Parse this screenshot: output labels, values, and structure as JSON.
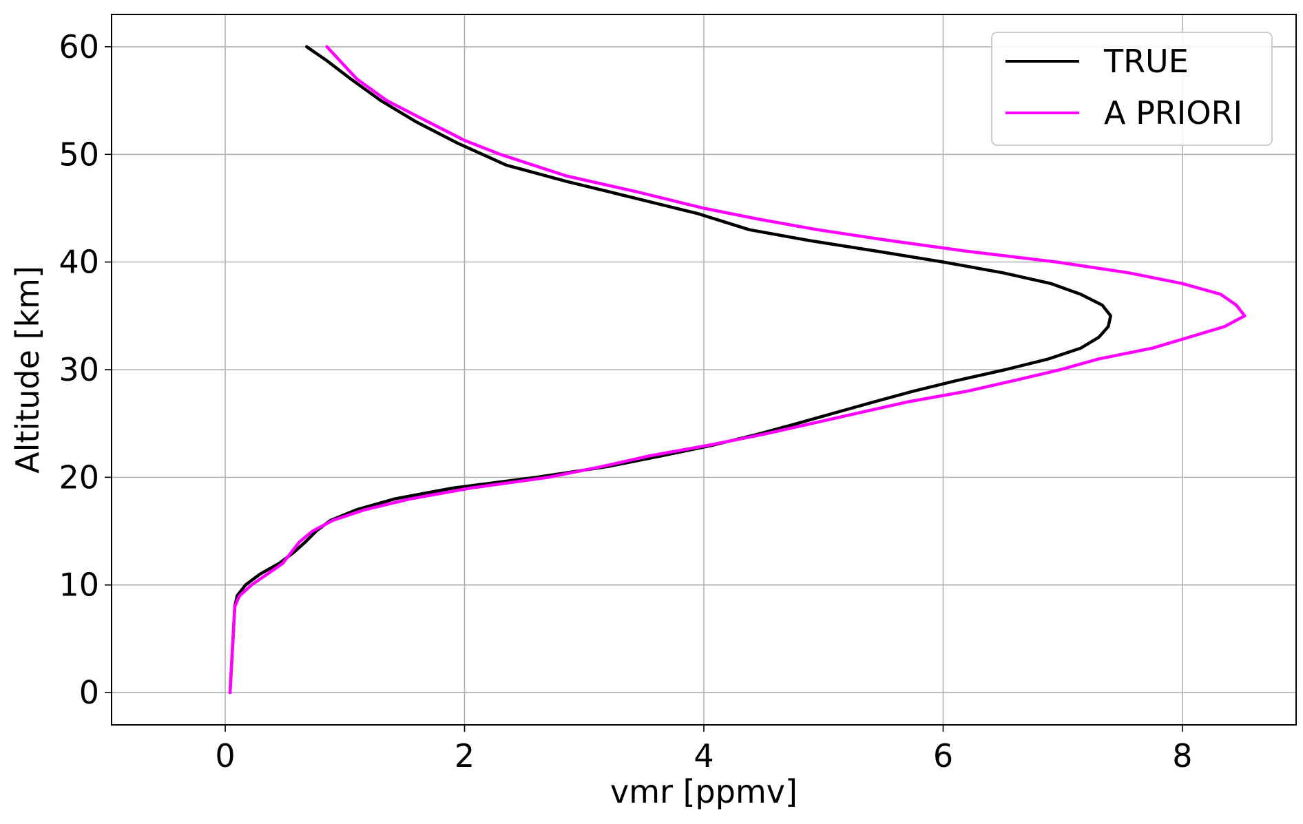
{
  "chart_data": {
    "type": "line",
    "title": "",
    "xlabel": "vmr [ppmv]",
    "ylabel": "Altitude [km]",
    "xlim": [
      -0.95,
      8.95
    ],
    "ylim": [
      -3,
      63
    ],
    "xticks": [
      0,
      2,
      4,
      6,
      8
    ],
    "yticks": [
      0,
      10,
      20,
      30,
      40,
      50,
      60
    ],
    "grid": true,
    "legend_position": "top-right",
    "series": [
      {
        "name": "TRUE",
        "color": "#000000",
        "points": [
          [
            0.04,
            0
          ],
          [
            0.06,
            4
          ],
          [
            0.08,
            8
          ],
          [
            0.1,
            9
          ],
          [
            0.17,
            10
          ],
          [
            0.29,
            11
          ],
          [
            0.45,
            12
          ],
          [
            0.57,
            13
          ],
          [
            0.67,
            14
          ],
          [
            0.76,
            15
          ],
          [
            0.88,
            16
          ],
          [
            1.1,
            17
          ],
          [
            1.42,
            18
          ],
          [
            1.9,
            19
          ],
          [
            2.6,
            20
          ],
          [
            3.2,
            21
          ],
          [
            3.65,
            22
          ],
          [
            4.08,
            23
          ],
          [
            4.45,
            24
          ],
          [
            4.78,
            25
          ],
          [
            5.1,
            26
          ],
          [
            5.42,
            27
          ],
          [
            5.75,
            28
          ],
          [
            6.12,
            29
          ],
          [
            6.52,
            30
          ],
          [
            6.88,
            31
          ],
          [
            7.15,
            32
          ],
          [
            7.3,
            33
          ],
          [
            7.38,
            34
          ],
          [
            7.4,
            35
          ],
          [
            7.33,
            36
          ],
          [
            7.15,
            37
          ],
          [
            6.9,
            38
          ],
          [
            6.5,
            39
          ],
          [
            6.0,
            40
          ],
          [
            5.45,
            41
          ],
          [
            4.88,
            42
          ],
          [
            4.38,
            43
          ],
          [
            3.95,
            44.5
          ],
          [
            3.4,
            46
          ],
          [
            2.85,
            47.5
          ],
          [
            2.35,
            49
          ],
          [
            1.95,
            51
          ],
          [
            1.6,
            53
          ],
          [
            1.3,
            55
          ],
          [
            1.05,
            57
          ],
          [
            0.85,
            58.7
          ],
          [
            0.68,
            60
          ]
        ]
      },
      {
        "name": "A PRIORI",
        "color": "#ff00ff",
        "points": [
          [
            0.04,
            0
          ],
          [
            0.06,
            4
          ],
          [
            0.08,
            8
          ],
          [
            0.12,
            9
          ],
          [
            0.22,
            10
          ],
          [
            0.35,
            11
          ],
          [
            0.48,
            12
          ],
          [
            0.55,
            13
          ],
          [
            0.62,
            14
          ],
          [
            0.73,
            15
          ],
          [
            0.9,
            16
          ],
          [
            1.17,
            17
          ],
          [
            1.55,
            18
          ],
          [
            2.05,
            19
          ],
          [
            2.7,
            20
          ],
          [
            3.15,
            21
          ],
          [
            3.55,
            22
          ],
          [
            4.05,
            23
          ],
          [
            4.5,
            24
          ],
          [
            5.1,
            25.5
          ],
          [
            5.7,
            27
          ],
          [
            6.2,
            28
          ],
          [
            6.6,
            29
          ],
          [
            6.98,
            30
          ],
          [
            7.3,
            31
          ],
          [
            7.75,
            32
          ],
          [
            8.05,
            33
          ],
          [
            8.35,
            34
          ],
          [
            8.52,
            35
          ],
          [
            8.45,
            36
          ],
          [
            8.32,
            37
          ],
          [
            8.0,
            38
          ],
          [
            7.55,
            39
          ],
          [
            6.95,
            40
          ],
          [
            6.2,
            41
          ],
          [
            5.55,
            42
          ],
          [
            4.95,
            43
          ],
          [
            4.45,
            44
          ],
          [
            4.0,
            45
          ],
          [
            3.45,
            46.5
          ],
          [
            2.85,
            48
          ],
          [
            2.3,
            50
          ],
          [
            2.0,
            51.3
          ],
          [
            1.7,
            53
          ],
          [
            1.35,
            55
          ],
          [
            1.1,
            57
          ],
          [
            0.85,
            60
          ]
        ]
      }
    ]
  }
}
